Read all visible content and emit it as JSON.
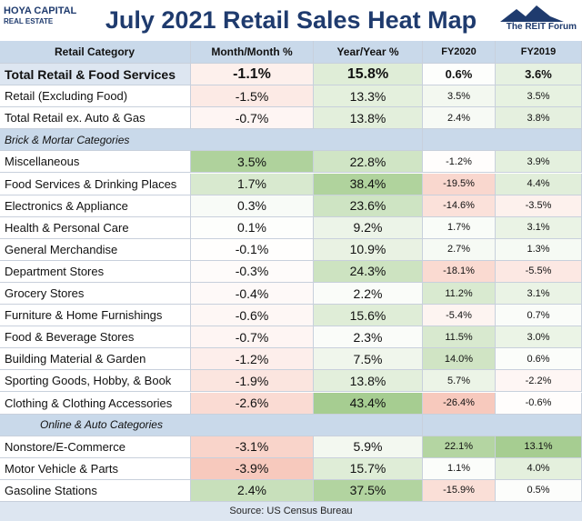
{
  "header": {
    "title": "July 2021 Retail Sales Heat Map",
    "logo_left": [
      "HOYA CAPITAL",
      "REAL ESTATE"
    ],
    "logo_right": "The REIT Forum"
  },
  "table": {
    "columns": [
      "Retail Category",
      "Month/Month %",
      "Year/Year %",
      "FY2020",
      "FY2019"
    ],
    "rows": [
      {
        "label": "Total Retail & Food Services",
        "cells": [
          "-1.1%",
          "15.8%",
          "0.6%",
          "3.6%"
        ]
      },
      {
        "label": "Retail (Excluding Food)",
        "cells": [
          "-1.5%",
          "13.3%",
          "3.5%",
          "3.5%"
        ]
      },
      {
        "label": "Total Retail ex. Auto & Gas",
        "cells": [
          "-0.7%",
          "13.8%",
          "2.4%",
          "3.8%"
        ]
      },
      {
        "section": "Brick & Mortar Categories"
      },
      {
        "label": "Miscellaneous",
        "cells": [
          "3.5%",
          "22.8%",
          "-1.2%",
          "3.9%"
        ]
      },
      {
        "label": "Food Services & Drinking Places",
        "cells": [
          "1.7%",
          "38.4%",
          "-19.5%",
          "4.4%"
        ]
      },
      {
        "label": "Electronics & Appliance",
        "cells": [
          "0.3%",
          "23.6%",
          "-14.6%",
          "-3.5%"
        ]
      },
      {
        "label": "Health & Personal Care",
        "cells": [
          "0.1%",
          "9.2%",
          "1.7%",
          "3.1%"
        ]
      },
      {
        "label": "General Merchandise",
        "cells": [
          "-0.1%",
          "10.9%",
          "2.7%",
          "1.3%"
        ]
      },
      {
        "label": "Department Stores",
        "cells": [
          "-0.3%",
          "24.3%",
          "-18.1%",
          "-5.5%"
        ]
      },
      {
        "label": "Grocery Stores",
        "cells": [
          "-0.4%",
          "2.2%",
          "11.2%",
          "3.1%"
        ]
      },
      {
        "label": "Furniture & Home Furnishings",
        "cells": [
          "-0.6%",
          "15.6%",
          "-5.4%",
          "0.7%"
        ]
      },
      {
        "label": "Food & Beverage Stores",
        "cells": [
          "-0.7%",
          "2.3%",
          "11.5%",
          "3.0%"
        ]
      },
      {
        "label": "Building Material & Garden",
        "cells": [
          "-1.2%",
          "7.5%",
          "14.0%",
          "0.6%"
        ]
      },
      {
        "label": "Sporting Goods, Hobby, & Book",
        "cells": [
          "-1.9%",
          "13.8%",
          "5.7%",
          "-2.2%"
        ]
      },
      {
        "label": "Clothing & Clothing Accessories",
        "cells": [
          "-2.6%",
          "43.4%",
          "-26.4%",
          "-0.6%"
        ]
      },
      {
        "section": "Online & Auto Categories"
      },
      {
        "label": "Nonstore/E-Commerce",
        "cells": [
          "-3.1%",
          "5.9%",
          "22.1%",
          "13.1%"
        ]
      },
      {
        "label": "Motor Vehicle & Parts",
        "cells": [
          "-3.9%",
          "15.7%",
          "1.1%",
          "4.0%"
        ]
      },
      {
        "label": "Gasoline Stations",
        "cells": [
          "2.4%",
          "37.5%",
          "-15.9%",
          "0.5%"
        ]
      }
    ]
  },
  "footer": {
    "source": "Source: US Census Bureau"
  }
}
